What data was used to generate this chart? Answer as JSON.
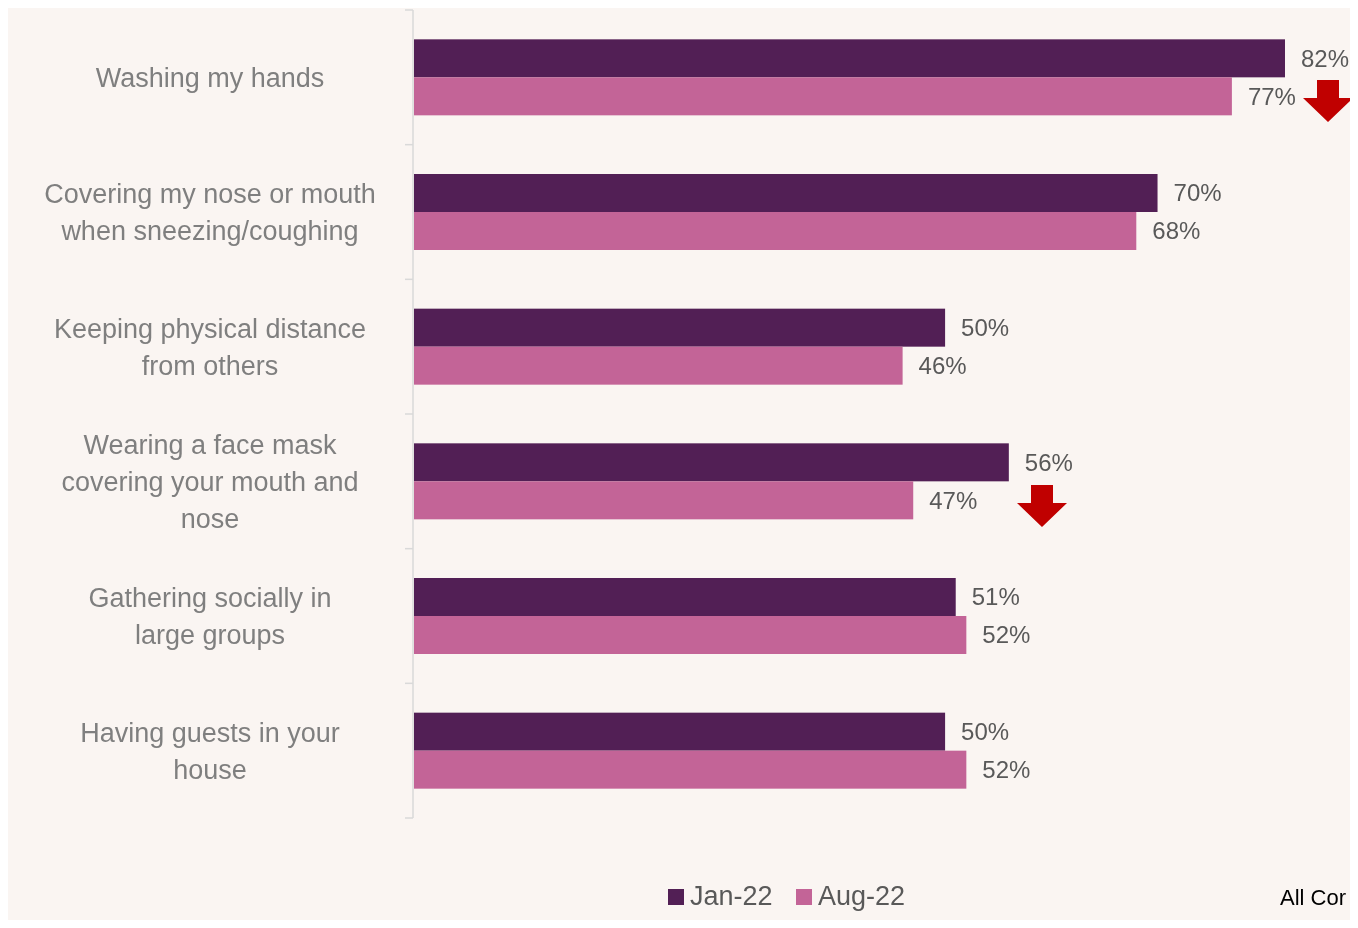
{
  "chart_data": {
    "type": "bar",
    "orientation": "horizontal",
    "categories": [
      "Washing my hands",
      "Covering my nose or mouth when sneezing/coughing",
      "Keeping physical distance from others",
      "Wearing a face mask covering your mouth and nose",
      "Gathering socially in large groups",
      "Having guests in your house"
    ],
    "series": [
      {
        "name": "Jan-22",
        "color": "#521f55",
        "values": [
          82,
          70,
          50,
          56,
          51,
          50
        ],
        "value_labels": [
          "82%",
          "70%",
          "50%",
          "56%",
          "51%",
          "50%"
        ]
      },
      {
        "name": "Aug-22",
        "color": "#c36497",
        "values": [
          77,
          68,
          46,
          47,
          52,
          52
        ],
        "value_labels": [
          "77%",
          "68%",
          "46%",
          "47%",
          "52%",
          "52%"
        ]
      }
    ],
    "legend": "bottom",
    "annotations": [
      "All Cor"
    ]
  }
}
